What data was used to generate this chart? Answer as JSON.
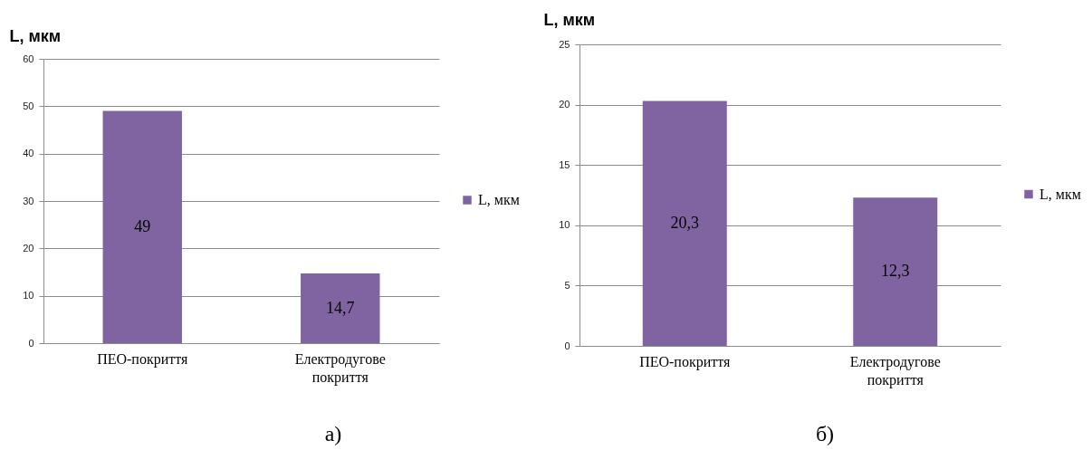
{
  "chart_data": [
    {
      "type": "bar",
      "ylabel": "L, мкм",
      "categories": [
        "ПЕО-покриття",
        "Електродугове покриття"
      ],
      "series": [
        {
          "name": "L, мкм",
          "color": "#8064a2",
          "values": [
            49,
            14.7
          ],
          "value_labels": [
            "49",
            "14,7"
          ]
        }
      ],
      "ylim": [
        0,
        60
      ],
      "yticks": [
        0,
        10,
        20,
        30,
        40,
        50,
        60
      ],
      "grid": "y",
      "legend": "right",
      "annotations": [
        "а)"
      ]
    },
    {
      "type": "bar",
      "ylabel": "L, мкм",
      "categories": [
        "ПЕО-покриття",
        "Електродугове покриття"
      ],
      "series": [
        {
          "name": "L, мкм",
          "color": "#8064a2",
          "values": [
            20.3,
            12.3
          ],
          "value_labels": [
            "20,3",
            "12,3"
          ]
        }
      ],
      "ylim": [
        0,
        25
      ],
      "yticks": [
        0,
        5,
        10,
        15,
        20,
        25
      ],
      "grid": "y",
      "legend": "right",
      "annotations": [
        "б)"
      ]
    }
  ]
}
